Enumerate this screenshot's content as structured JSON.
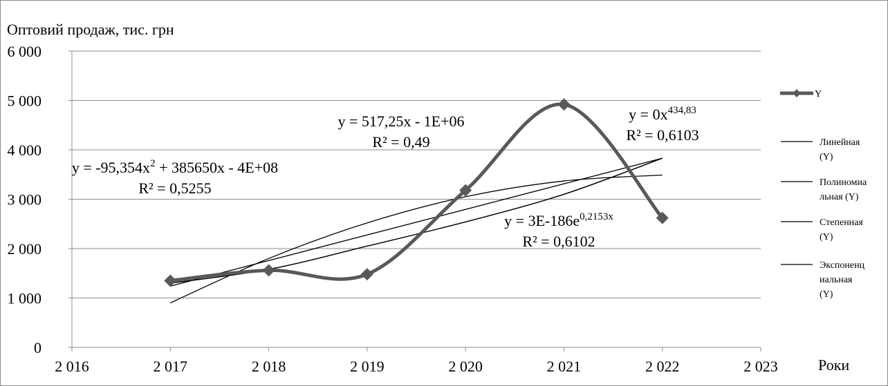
{
  "chart_data": {
    "type": "line",
    "ylabel": "Оптовий продаж, тис. грн",
    "xlabel": "Роки",
    "x_ticks": [
      "2 016",
      "2 017",
      "2 018",
      "2 019",
      "2 020",
      "2 021",
      "2 022",
      "2 023"
    ],
    "y_ticks": [
      "0",
      "1 000",
      "2 000",
      "3 000",
      "4 000",
      "5 000",
      "6 000"
    ],
    "xlim": [
      2016,
      2023
    ],
    "ylim": [
      0,
      6000
    ],
    "grid": true,
    "legend_position": "right",
    "series": [
      {
        "name": "Y",
        "color": "#595959",
        "marker": "diamond",
        "smooth": true,
        "x": [
          2017,
          2018,
          2019,
          2020,
          2021,
          2022
        ],
        "values": [
          1350,
          1560,
          1480,
          3180,
          4920,
          2620
        ]
      }
    ],
    "trendlines": [
      {
        "name": "Линейная (Y)",
        "type": "linear",
        "color": "#000000",
        "x": [
          2017,
          2022
        ],
        "values": [
          1240,
          3830
        ]
      },
      {
        "name": "Полиномиальная (Y)",
        "type": "polynomial",
        "color": "#000000",
        "x": [
          2017,
          2018,
          2019,
          2020,
          2021,
          2022
        ],
        "values": [
          900,
          1800,
          2520,
          3050,
          3370,
          3490
        ]
      },
      {
        "name": "Степенная (Y)",
        "type": "power",
        "color": "#000000",
        "x": [
          2017,
          2018,
          2019,
          2020,
          2021,
          2022
        ],
        "values": [
          1300,
          1580,
          2050,
          2540,
          3100,
          3830
        ]
      },
      {
        "name": "Экспоненциальная (Y)",
        "type": "exponential",
        "color": "#000000",
        "x": [
          2017,
          2018,
          2019,
          2020,
          2021,
          2022
        ],
        "values": [
          1300,
          1580,
          2050,
          2540,
          3100,
          3830
        ]
      }
    ],
    "legend": [
      {
        "label_lines": [
          "Y"
        ]
      },
      {
        "label_lines": [
          "Линейная",
          "(Y)"
        ]
      },
      {
        "label_lines": [
          "Полиномиа",
          "льная (Y)"
        ]
      },
      {
        "label_lines": [
          "Степенная",
          "(Y)"
        ]
      },
      {
        "label_lines": [
          "Экспоненц",
          "иальная",
          "(Y)"
        ]
      }
    ],
    "annotations": [
      {
        "lines": [
          {
            "text": "y = 517,25x - 1E+06"
          },
          {
            "text": "R² = 0,49"
          }
        ]
      },
      {
        "lines": [
          {
            "text": "y = -95,354x",
            "sup": "2",
            "tail": " + 385650x - 4E+08"
          },
          {
            "text": "R² = 0,5255"
          }
        ]
      },
      {
        "lines": [
          {
            "text": "y = 0x",
            "sup": "434,83"
          },
          {
            "text": "R² = 0,6103"
          }
        ]
      },
      {
        "lines": [
          {
            "text": "y = 3E-186e",
            "sup": "0,2153x"
          },
          {
            "text": "R² = 0,6102"
          }
        ]
      }
    ]
  }
}
